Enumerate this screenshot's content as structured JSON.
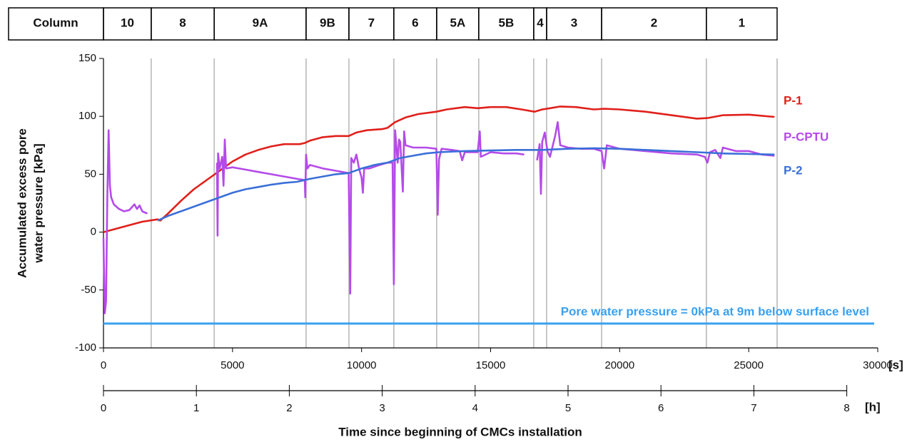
{
  "chart_data": {
    "type": "line",
    "column_header": "Column",
    "columns": [
      "10",
      "8",
      "9A",
      "9B",
      "7",
      "6",
      "5A",
      "5B",
      "4",
      "3",
      "2",
      "1"
    ],
    "column_edges": [
      0,
      1850,
      4290,
      7850,
      9510,
      11250,
      12910,
      14540,
      16670,
      17170,
      19300,
      23360,
      26100
    ],
    "ylabel": [
      "Accumulated excess pore",
      "water pressure [kPa]"
    ],
    "xunit": "[s]",
    "x2unit": "[h]",
    "xlabel": "Time since beginning of CMCs installation",
    "xlim": [
      0,
      30000
    ],
    "xticks": [
      0,
      5000,
      10000,
      15000,
      20000,
      25000,
      30000
    ],
    "ylim": [
      -100,
      150
    ],
    "yticks": [
      -100,
      -50,
      0,
      50,
      100,
      150
    ],
    "x2lim": [
      0,
      8.3333
    ],
    "x2ticks": [
      0,
      1,
      2,
      3,
      4,
      5,
      6,
      7,
      8
    ],
    "reference_line": {
      "value": -79,
      "label": "Pore water pressure = 0kPa at 9m below surface level",
      "color": "#3aa0ef"
    },
    "series": [
      {
        "name": "P-1",
        "color": "#e0201b",
        "x": [
          0,
          500,
          1000,
          1500,
          2100,
          2200,
          2500,
          3000,
          3500,
          4000,
          4500,
          5000,
          5500,
          6000,
          6500,
          7000,
          7600,
          7800,
          8000,
          8500,
          9000,
          9500,
          9800,
          10200,
          10800,
          11000,
          11300,
          11700,
          12200,
          12900,
          13300,
          14000,
          14500,
          15000,
          15600,
          16200,
          16700,
          17000,
          17300,
          17700,
          18300,
          19000,
          19400,
          20000,
          21000,
          22000,
          23000,
          23400,
          24000,
          25000,
          26000
        ],
        "values": [
          0,
          3,
          6,
          9,
          11,
          10,
          16,
          27,
          37,
          45,
          53,
          61,
          67,
          71,
          74,
          76,
          76,
          77,
          79,
          82,
          83,
          83,
          86,
          88,
          89,
          90,
          95,
          99,
          102,
          104,
          106,
          108,
          107,
          108,
          108,
          106,
          104,
          106,
          107,
          108.5,
          108,
          106,
          106.5,
          106,
          104,
          101,
          98,
          98.5,
          101,
          101.5,
          99.5
        ]
      },
      {
        "name": "P-CPTU",
        "color": "#b44be8",
        "x": [
          0,
          50,
          100,
          150,
          200,
          250,
          300,
          400,
          600,
          800,
          1000,
          1200,
          1300,
          1400,
          1500,
          1600,
          1700,
          2500,
          4400,
          4420,
          4440,
          4500,
          4600,
          4650,
          4700,
          4750,
          5000,
          5500,
          6000,
          6500,
          7000,
          7500,
          7800,
          7820,
          7850,
          7900,
          8000,
          8500,
          9000,
          9500,
          9560,
          9600,
          9700,
          9800,
          9900,
          10000,
          10050,
          10100,
          10300,
          10700,
          11000,
          11200,
          11250,
          11300,
          11400,
          11450,
          11500,
          11600,
          11650,
          11700,
          12000,
          12500,
          12900,
          12950,
          13000,
          13100,
          13500,
          13800,
          13900,
          14000,
          14500,
          14580,
          14620,
          15000,
          15500,
          16000,
          16300,
          16500,
          16800,
          16900,
          16950,
          17000,
          17100,
          17200,
          17300,
          17500,
          17600,
          17700,
          18000,
          18500,
          19000,
          19300,
          19400,
          19500,
          20000,
          21000,
          22000,
          23000,
          23300,
          23400,
          23500,
          23700,
          23900,
          24000,
          24500,
          25000,
          25500,
          26000
        ],
        "values": [
          -5,
          -70,
          -60,
          30,
          88,
          40,
          30,
          24,
          20,
          18,
          19,
          24,
          20,
          23,
          18,
          17,
          16,
          null,
          60,
          -3,
          68,
          55,
          65,
          40,
          80,
          55,
          56,
          54,
          52,
          50,
          48,
          46,
          45,
          30,
          67,
          55,
          58,
          55,
          53,
          51,
          -53,
          64,
          60,
          67,
          55,
          47,
          34,
          55,
          55,
          58,
          60,
          60,
          -45,
          88,
          60,
          80,
          78,
          35,
          87,
          75,
          73,
          73,
          72,
          15,
          63,
          72,
          71,
          70,
          62,
          69,
          69,
          87,
          65,
          69,
          68,
          68,
          67,
          null,
          62,
          76,
          33,
          78,
          86,
          70,
          65,
          83,
          95,
          75,
          73,
          72,
          72,
          70,
          55,
          75,
          72,
          70,
          68,
          67,
          65,
          60,
          69,
          71,
          64,
          73,
          70,
          70,
          67,
          66
        ]
      },
      {
        "name": "P-2",
        "color": "#3a6fd8",
        "x": [
          2100,
          2500,
          3000,
          3500,
          4000,
          4500,
          5000,
          5500,
          6000,
          6500,
          7000,
          7500,
          8000,
          8500,
          9000,
          9500,
          10000,
          10500,
          11000,
          11500,
          12000,
          12500,
          13000,
          14000,
          15000,
          16000,
          17000,
          18000,
          19000,
          20000,
          21000,
          22000,
          23000,
          24000,
          25000,
          26000
        ],
        "values": [
          10,
          14,
          18,
          22,
          26,
          30,
          34,
          37,
          39,
          41,
          42.5,
          43.5,
          46,
          48,
          50,
          51,
          55,
          58,
          60,
          64,
          66,
          68,
          69,
          70,
          70.5,
          71,
          71,
          72,
          72.5,
          72,
          71,
          70,
          69,
          68,
          67.5,
          67
        ]
      }
    ]
  }
}
